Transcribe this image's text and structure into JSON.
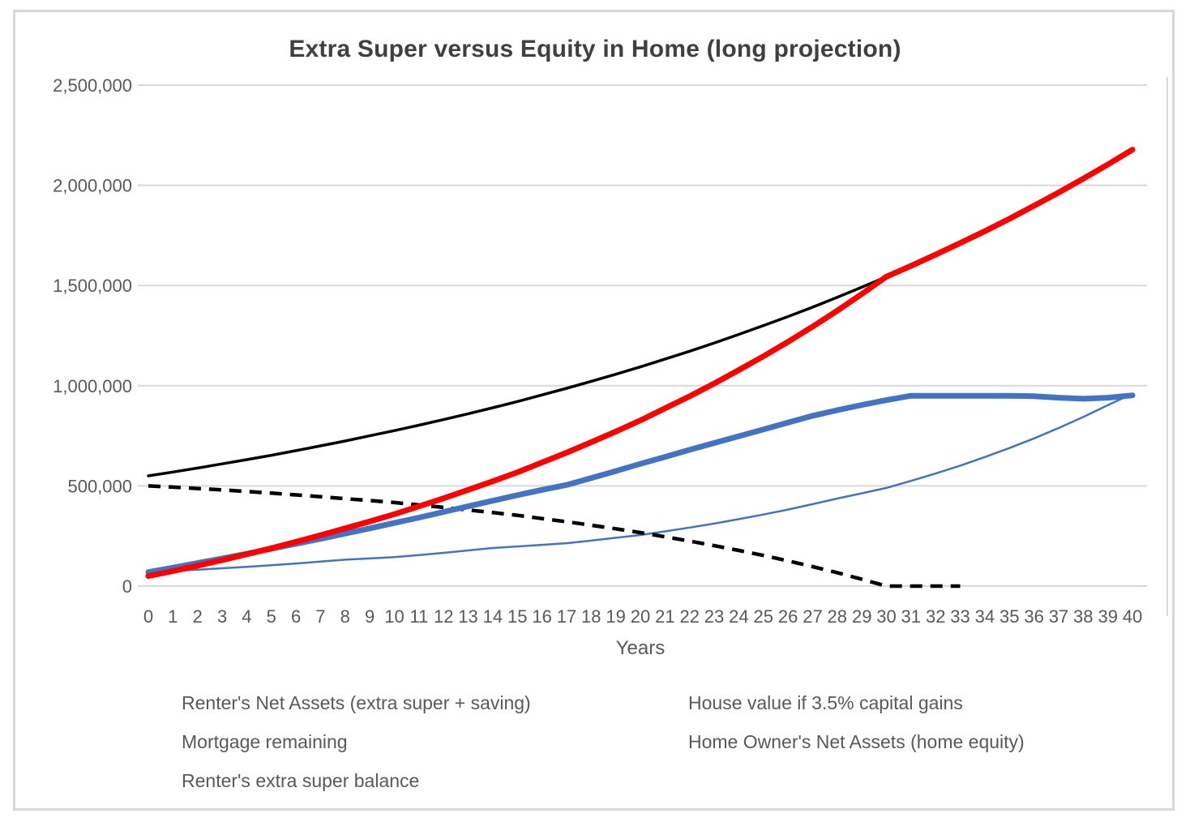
{
  "title": "Extra Super versus Equity in Home (long projection)",
  "colors": {
    "accent_blue": "#4472C4",
    "accent_red": "#FF0000",
    "line_black": "#000000",
    "gridline": "#D9D9D9",
    "axis_text": "#595959",
    "title_text": "#404040",
    "frame_border": "#D8D8D8"
  },
  "legend": {
    "items": [
      {
        "label": "Renter's Net Assets (extra super + saving)"
      },
      {
        "label": "House value if 3.5% capital gains"
      },
      {
        "label": "Mortgage remaining"
      },
      {
        "label": "Home Owner's Net Assets (home equity)"
      },
      {
        "label": "Renter's extra super balance"
      }
    ]
  },
  "chart_data": {
    "type": "line",
    "title": "Extra Super versus Equity in Home (long projection)",
    "xlabel": "Years",
    "ylabel": "",
    "ylim": [
      0,
      2500000
    ],
    "y_tick_interval": 500000,
    "y_tick_labels": [
      "0",
      "500,000",
      "1,000,000",
      "1,500,000",
      "2,000,000",
      "2,500,000"
    ],
    "grid": "horizontal",
    "legend_position": "bottom",
    "x": [
      0,
      1,
      2,
      3,
      4,
      5,
      6,
      7,
      8,
      9,
      10,
      11,
      12,
      13,
      14,
      15,
      16,
      17,
      18,
      19,
      20,
      21,
      22,
      23,
      24,
      25,
      26,
      27,
      28,
      29,
      30,
      31,
      32,
      33,
      34,
      35,
      36,
      37,
      38,
      39,
      40
    ],
    "series": [
      {
        "name": "Renter's Net Assets (extra super + saving)",
        "slug": "renters-net-assets",
        "color": "#4472C4",
        "width": 7,
        "dash": null,
        "values": [
          70000,
          92000,
          115000,
          138000,
          162000,
          186000,
          211000,
          236000,
          262000,
          288000,
          315000,
          342000,
          370000,
          398000,
          426000,
          454000,
          480000,
          505000,
          539000,
          574000,
          610000,
          645000,
          680000,
          714000,
          748000,
          782000,
          816000,
          850000,
          878000,
          904000,
          928000,
          950000,
          950000,
          950000,
          950000,
          950000,
          948000,
          940000,
          935000,
          940000,
          952000
        ]
      },
      {
        "name": "House value if 3.5% capital gains",
        "slug": "house-value",
        "color": "#000000",
        "width": 3.5,
        "dash": null,
        "values": [
          550000,
          569000,
          589000,
          610000,
          631000,
          653000,
          676000,
          700000,
          724000,
          750000,
          776000,
          803000,
          831000,
          860000,
          890000,
          921000,
          954000,
          987000,
          1022000,
          1057000,
          1094000,
          1133000,
          1172000,
          1213000,
          1256000,
          1300000,
          1345000,
          1392000,
          1441000,
          1492000,
          1544000,
          1598000,
          1654000,
          1712000,
          1771000,
          1833000,
          1898000,
          1964000,
          2033000,
          2104000,
          2178000
        ]
      },
      {
        "name": "Mortgage remaining",
        "slug": "mortgage-remaining",
        "color": "#000000",
        "width": 4.5,
        "dash": "15 10",
        "values": [
          500000,
          494000,
          487000,
          480000,
          472000,
          464000,
          455000,
          446000,
          436000,
          427000,
          417000,
          405000,
          393000,
          380000,
          367000,
          353000,
          337000,
          321000,
          304000,
          286000,
          267000,
          246000,
          225000,
          202000,
          178000,
          153000,
          126000,
          97000,
          67000,
          34000,
          0,
          0,
          0,
          0
        ]
      },
      {
        "name": "Home Owner's Net Assets (home equity)",
        "slug": "home-owners-net-assets",
        "color": "#FF0000",
        "width": 7,
        "dash": null,
        "values": [
          50000,
          75000,
          102000,
          130000,
          159000,
          189000,
          221000,
          254000,
          288000,
          323000,
          359000,
          398000,
          438000,
          480000,
          523000,
          568000,
          617000,
          666000,
          718000,
          771000,
          827000,
          887000,
          947000,
          1011000,
          1078000,
          1147000,
          1219000,
          1295000,
          1374000,
          1458000,
          1544000,
          1598000,
          1654000,
          1712000,
          1771000,
          1833000,
          1898000,
          1964000,
          2033000,
          2104000,
          2178000
        ]
      },
      {
        "name": "Renter's extra super balance",
        "slug": "renters-extra-super",
        "color": "#4472C4",
        "width": 2.5,
        "dash": null,
        "values": [
          70000,
          76000,
          82000,
          89000,
          96000,
          104000,
          113000,
          122000,
          132000,
          138000,
          145000,
          155000,
          166000,
          178000,
          190000,
          198000,
          206000,
          214000,
          227000,
          241000,
          255000,
          273000,
          292000,
          312000,
          334000,
          357000,
          382000,
          409000,
          437000,
          463000,
          490000,
          525000,
          562000,
          601000,
          644000,
          689000,
          737000,
          789000,
          844000,
          903000,
          960000
        ]
      }
    ]
  }
}
